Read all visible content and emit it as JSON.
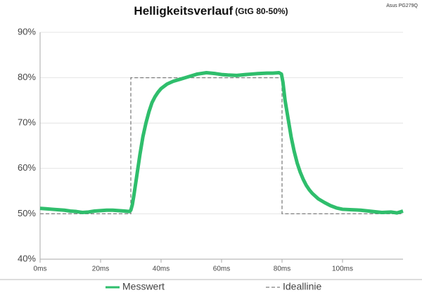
{
  "chart_data": {
    "type": "line",
    "title": "Helligkeitsverlauf",
    "subtitle": "(GtG 80-50%)",
    "annotation": "Asus PG279Q",
    "x": [
      0,
      2,
      4,
      6,
      8,
      10,
      12,
      14,
      16,
      18,
      20,
      22,
      24,
      26,
      28,
      29.5,
      30,
      30.5,
      31,
      32,
      33,
      34,
      35,
      36,
      37,
      38,
      39,
      40,
      42,
      44,
      46,
      48,
      50,
      52,
      55,
      58,
      60,
      62,
      65,
      68,
      70,
      72,
      75,
      77,
      79,
      79.8,
      80.3,
      81,
      82,
      83,
      84,
      85,
      86,
      87,
      88,
      89,
      90,
      92,
      94,
      96,
      98,
      100,
      103,
      106,
      110,
      113,
      116,
      118,
      120
    ],
    "series": [
      {
        "name": "Messwert",
        "color": "#2fbe6c",
        "dashed": false,
        "values": [
          51.2,
          51.1,
          51.0,
          50.9,
          50.8,
          50.6,
          50.5,
          50.3,
          50.4,
          50.6,
          50.7,
          50.8,
          50.8,
          50.7,
          50.6,
          50.5,
          50.8,
          52,
          54,
          58.5,
          63,
          67,
          70,
          72.5,
          74.5,
          75.8,
          76.8,
          77.6,
          78.6,
          79.2,
          79.6,
          80.0,
          80.4,
          80.8,
          81.1,
          80.9,
          80.7,
          80.6,
          80.5,
          80.7,
          80.8,
          80.9,
          81.0,
          81.0,
          81.1,
          80.8,
          79,
          75,
          71,
          67,
          63.8,
          61.2,
          59.2,
          57.6,
          56.3,
          55.3,
          54.5,
          53.3,
          52.5,
          51.8,
          51.3,
          51.0,
          50.9,
          50.8,
          50.5,
          50.3,
          50.4,
          50.2,
          50.6
        ]
      },
      {
        "name": "Ideallinie",
        "color": "#7f7f7f",
        "dashed": true,
        "values": [
          50,
          null,
          null,
          null,
          null,
          null,
          null,
          null,
          null,
          null,
          null,
          null,
          null,
          null,
          null,
          null,
          50,
          null,
          null,
          null,
          null,
          null,
          null,
          null,
          null,
          null,
          null,
          null,
          null,
          null,
          null,
          null,
          null,
          null,
          null,
          null,
          null,
          null,
          null,
          null,
          null,
          null,
          null,
          null,
          null,
          null,
          null,
          null,
          null,
          null,
          null,
          null,
          null,
          null,
          null,
          null,
          null,
          null,
          null,
          null,
          null,
          null,
          null,
          null,
          null,
          null,
          null,
          null,
          50
        ]
      }
    ],
    "ideal_steps": {
      "x": [
        0,
        30,
        30,
        80,
        80,
        120
      ],
      "values": [
        50,
        50,
        80,
        80,
        50,
        50
      ]
    },
    "xlim": [
      0,
      120
    ],
    "ylim": [
      40,
      90
    ],
    "xticks": [
      {
        "value": 0,
        "label": "0ms"
      },
      {
        "value": 20,
        "label": "20ms"
      },
      {
        "value": 40,
        "label": "40ms"
      },
      {
        "value": 60,
        "label": "60ms"
      },
      {
        "value": 80,
        "label": "80ms"
      },
      {
        "value": 100,
        "label": "100ms"
      }
    ],
    "yticks": [
      {
        "value": 40,
        "label": "40%"
      },
      {
        "value": 50,
        "label": "50%"
      },
      {
        "value": 60,
        "label": "60%"
      },
      {
        "value": 70,
        "label": "70%"
      },
      {
        "value": 80,
        "label": "80%"
      },
      {
        "value": 90,
        "label": "90%"
      }
    ],
    "grid": true
  }
}
